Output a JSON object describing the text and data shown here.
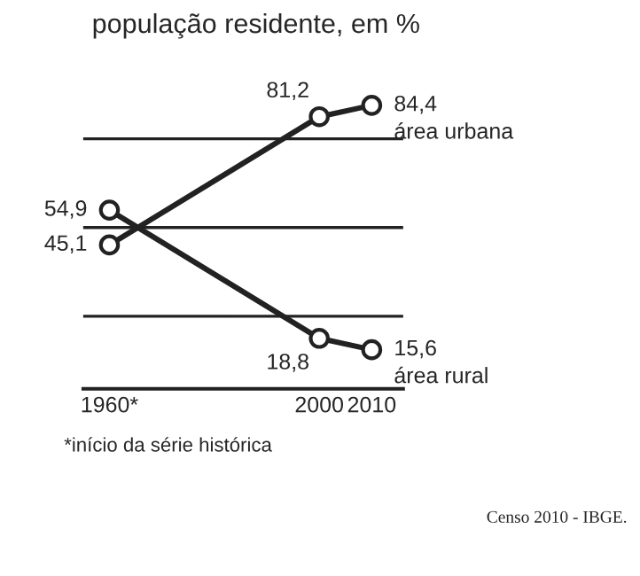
{
  "chart_data": {
    "type": "line",
    "title": "população residente, em %",
    "x": [
      1960,
      2000,
      2010
    ],
    "series": [
      {
        "name": "área urbana",
        "color": "#222222",
        "values": [
          45.1,
          81.2,
          84.4
        ],
        "value_labels": [
          "45,1",
          "81,2",
          "84,4"
        ]
      },
      {
        "name": "área rural",
        "color": "#222222",
        "values": [
          54.9,
          18.8,
          15.6
        ],
        "value_labels": [
          "54,9",
          "18,8",
          "15,6"
        ]
      }
    ],
    "xlim": [
      1955,
      2016
    ],
    "xticks": [
      {
        "value": 1960,
        "label": "1960*"
      },
      2000,
      2010
    ],
    "tick_labels": "x",
    "grid": "y",
    "marker": "circle",
    "line_style": "solid",
    "annotations": [
      "*início da série histórica",
      "Censo 2010 - IBGE."
    ]
  }
}
